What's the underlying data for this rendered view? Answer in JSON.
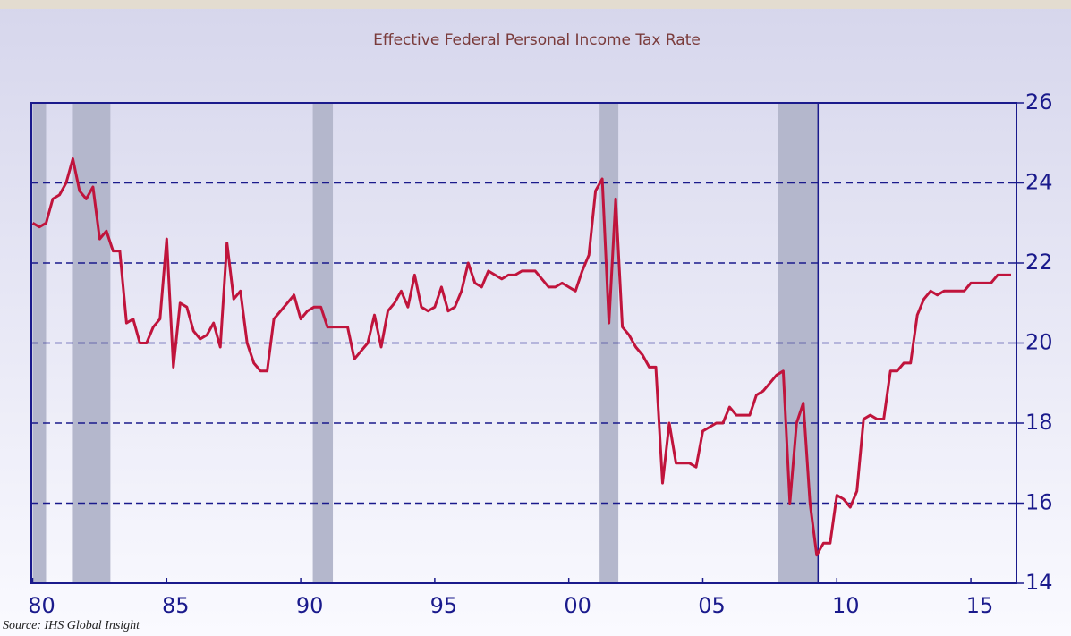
{
  "chart_data": {
    "type": "line",
    "title": "Effective Federal Personal Income Tax Rate",
    "source": "Source: IHS Global Insight",
    "xlim": [
      1979.95,
      2016.7
    ],
    "ylim": [
      14,
      26
    ],
    "xticks": [
      {
        "value": 1980,
        "label": "80"
      },
      {
        "value": 1985,
        "label": "85"
      },
      {
        "value": 1990,
        "label": "90"
      },
      {
        "value": 1995,
        "label": "95"
      },
      {
        "value": 2000,
        "label": "00"
      },
      {
        "value": 2005,
        "label": "05"
      },
      {
        "value": 2010,
        "label": "10"
      },
      {
        "value": 2015,
        "label": "15"
      }
    ],
    "yticks": [
      14,
      16,
      18,
      20,
      22,
      24,
      26
    ],
    "grid": true,
    "recessions": [
      [
        1980.0,
        1980.5
      ],
      [
        1981.5,
        1982.9
      ],
      [
        1990.45,
        1991.2
      ],
      [
        2001.15,
        2001.85
      ],
      [
        2007.8,
        2009.3
      ]
    ],
    "vline": 2009.3,
    "x": [
      1980,
      1980.25,
      1980.5,
      1980.75,
      1981,
      1981.25,
      1981.5,
      1981.75,
      1982,
      1982.25,
      1982.5,
      1982.75,
      1983,
      1983.25,
      1983.5,
      1983.75,
      1984,
      1984.25,
      1984.5,
      1984.75,
      1985,
      1985.25,
      1985.5,
      1985.75,
      1986,
      1986.25,
      1986.5,
      1986.75,
      1987,
      1987.25,
      1987.5,
      1987.75,
      1988,
      1988.25,
      1988.5,
      1988.75,
      1989,
      1989.25,
      1989.5,
      1989.75,
      1990,
      1990.25,
      1990.5,
      1990.75,
      1991,
      1991.25,
      1991.5,
      1991.75,
      1992,
      1992.25,
      1992.5,
      1992.75,
      1993,
      1993.25,
      1993.5,
      1993.75,
      1994,
      1994.25,
      1994.5,
      1994.75,
      1995,
      1995.25,
      1995.5,
      1995.75,
      1996,
      1996.25,
      1996.5,
      1996.75,
      1997,
      1997.25,
      1997.5,
      1997.75,
      1998,
      1998.25,
      1998.5,
      1998.75,
      1999,
      1999.25,
      1999.5,
      1999.75,
      2000,
      2000.25,
      2000.5,
      2000.75,
      2001,
      2001.25,
      2001.5,
      2001.75,
      2002,
      2002.25,
      2002.5,
      2002.75,
      2003,
      2003.25,
      2003.5,
      2003.75,
      2004,
      2004.25,
      2004.5,
      2004.75,
      2005,
      2005.25,
      2005.5,
      2005.75,
      2006,
      2006.25,
      2006.5,
      2006.75,
      2007,
      2007.25,
      2007.5,
      2007.75,
      2008,
      2008.25,
      2008.5,
      2008.75,
      2009,
      2009.25,
      2009.5,
      2009.75,
      2010,
      2010.25,
      2010.5,
      2010.75,
      2011,
      2011.25,
      2011.5,
      2011.75,
      2012,
      2012.25,
      2012.5,
      2012.75,
      2013,
      2013.25,
      2013.5,
      2013.75,
      2014,
      2014.25,
      2014.5,
      2014.75,
      2015,
      2015.25,
      2015.5,
      2015.75,
      2016,
      2016.25,
      2016.5
    ],
    "series": [
      {
        "color": "#c0143c",
        "values": [
          23.0,
          22.9,
          23.0,
          23.6,
          23.7,
          24.0,
          24.6,
          23.8,
          23.6,
          23.9,
          22.6,
          22.8,
          22.3,
          22.3,
          20.5,
          20.6,
          20.0,
          20.0,
          20.4,
          20.6,
          22.6,
          19.4,
          21.0,
          20.9,
          20.3,
          20.1,
          20.2,
          20.5,
          19.9,
          22.5,
          21.1,
          21.3,
          20.0,
          19.5,
          19.3,
          19.3,
          20.6,
          20.8,
          21.0,
          21.2,
          20.6,
          20.8,
          20.9,
          20.9,
          20.4,
          20.4,
          20.4,
          20.4,
          19.6,
          19.8,
          20.0,
          20.7,
          19.9,
          20.8,
          21.0,
          21.3,
          20.9,
          21.7,
          20.9,
          20.8,
          20.9,
          21.4,
          20.8,
          20.9,
          21.3,
          22.0,
          21.5,
          21.4,
          21.8,
          21.7,
          21.6,
          21.7,
          21.7,
          21.8,
          21.8,
          21.8,
          21.6,
          21.4,
          21.4,
          21.5,
          21.4,
          21.3,
          21.8,
          22.2,
          23.8,
          24.1,
          20.5,
          23.6,
          20.4,
          20.2,
          19.9,
          19.7,
          19.4,
          19.4,
          16.5,
          18.0,
          17.0,
          17.0,
          17.0,
          16.9,
          17.8,
          17.9,
          18.0,
          18.0,
          18.4,
          18.2,
          18.2,
          18.2,
          18.7,
          18.8,
          19.0,
          19.2,
          19.3,
          16.0,
          18.0,
          18.5,
          16.0,
          14.7,
          15.0,
          15.0,
          16.2,
          16.1,
          15.9,
          16.3,
          18.1,
          18.2,
          18.1,
          18.1,
          19.3,
          19.3,
          19.5,
          19.5,
          20.7,
          21.1,
          21.3,
          21.2,
          21.3,
          21.3,
          21.3,
          21.3,
          21.5,
          21.5,
          21.5,
          21.5,
          21.7,
          21.7,
          21.7
        ]
      }
    ]
  }
}
